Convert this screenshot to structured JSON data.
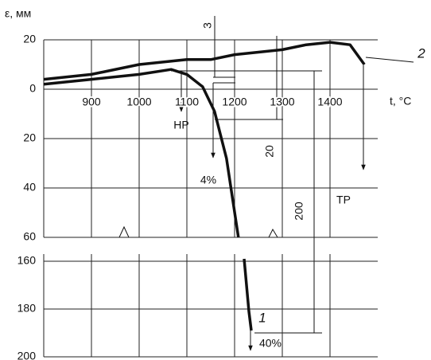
{
  "chart_data": [
    {
      "type": "line",
      "ylabel": "ε, мм",
      "xlabel": "t, °C",
      "xlim": [
        800,
        1500
      ],
      "xticks": [
        900,
        1000,
        1100,
        1200,
        1300,
        1400
      ],
      "ylim": [
        20,
        -60
      ],
      "yticks": [
        20,
        0,
        {
          "value": -20,
          "label": "20"
        },
        {
          "value": -40,
          "label": "40"
        },
        {
          "value": -60,
          "label": "60"
        }
      ],
      "grid": true,
      "series": [
        {
          "color": "#111111",
          "x": [
            800,
            900,
            1000,
            1067,
            1100,
            1133,
            1158,
            1183,
            1208
          ],
          "values": [
            2,
            4,
            6,
            8,
            6,
            1,
            -9,
            -28,
            -60
          ]
        },
        {
          "name": "2",
          "color": "#111111",
          "x": [
            800,
            900,
            1000,
            1100,
            1150,
            1200,
            1300,
            1350,
            1400,
            1442,
            1472
          ],
          "values": [
            4,
            6,
            10,
            12,
            12,
            14,
            16,
            18,
            19,
            18,
            10
          ]
        }
      ],
      "annotations": [
        "НР",
        "4%",
        "ТР",
        "3",
        "20",
        "200"
      ]
    },
    {
      "type": "line",
      "xlim": [
        800,
        1500
      ],
      "ylim": [
        -157,
        -200
      ],
      "yticks": [
        {
          "value": -160,
          "label": "160"
        },
        {
          "value": -180,
          "label": "180"
        },
        {
          "value": -200,
          "label": "200"
        }
      ],
      "grid": true,
      "series": [
        {
          "name": "1",
          "color": "#111111",
          "x": [
            1220,
            1230,
            1235
          ],
          "values": [
            -159,
            -181,
            -189
          ]
        }
      ],
      "annotations": [
        "40%"
      ]
    }
  ]
}
